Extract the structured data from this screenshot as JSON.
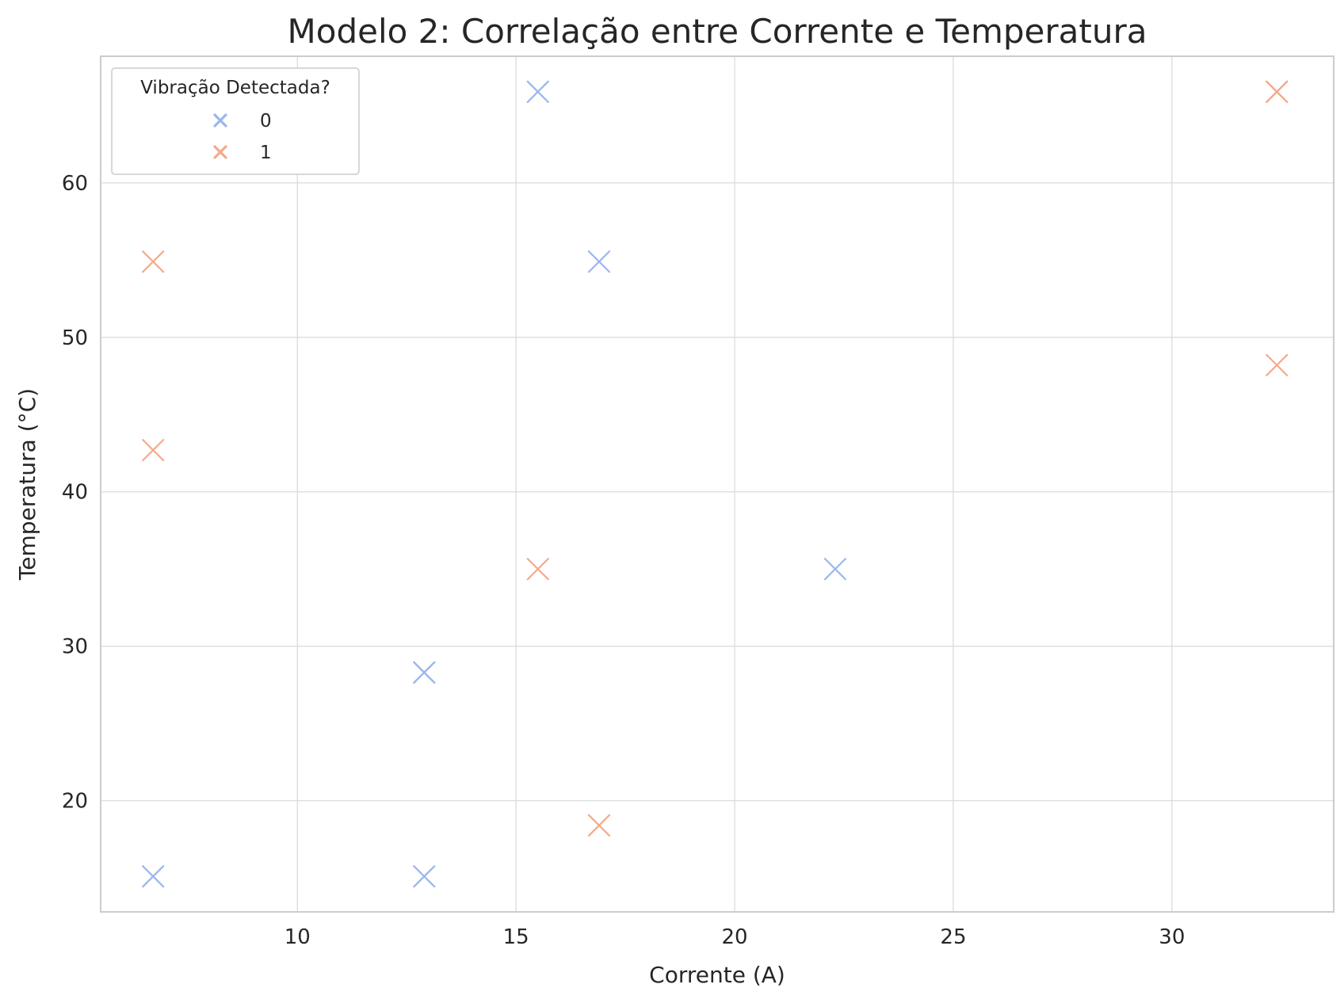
{
  "chart_data": {
    "type": "scatter",
    "title": "Modelo 2: Correlação entre Corrente e Temperatura",
    "xlabel": "Corrente (A)",
    "ylabel": "Temperatura (°C)",
    "xlim": [
      5.5,
      33.7
    ],
    "ylim": [
      12.8,
      68.2
    ],
    "xticks": [
      10,
      15,
      20,
      25,
      30
    ],
    "yticks": [
      20,
      30,
      40,
      50,
      60
    ],
    "grid": true,
    "marker": "x",
    "legend": {
      "title": "Vibração Detectada?",
      "placement": "upper-left"
    },
    "series": [
      {
        "name": "0",
        "color": "#9ab6ee",
        "points": [
          {
            "x": 15.5,
            "y": 65.9
          },
          {
            "x": 16.9,
            "y": 54.9
          },
          {
            "x": 22.3,
            "y": 35.0
          },
          {
            "x": 12.9,
            "y": 28.3
          },
          {
            "x": 12.9,
            "y": 28.3
          },
          {
            "x": 6.7,
            "y": 15.1
          },
          {
            "x": 12.9,
            "y": 15.1
          }
        ]
      },
      {
        "name": "1",
        "color": "#f4a98a",
        "points": [
          {
            "x": 32.4,
            "y": 65.9
          },
          {
            "x": 32.4,
            "y": 65.9
          },
          {
            "x": 6.7,
            "y": 54.9
          },
          {
            "x": 32.4,
            "y": 48.2
          },
          {
            "x": 6.7,
            "y": 42.7
          },
          {
            "x": 15.5,
            "y": 35.0
          },
          {
            "x": 16.9,
            "y": 18.4
          }
        ]
      }
    ]
  }
}
